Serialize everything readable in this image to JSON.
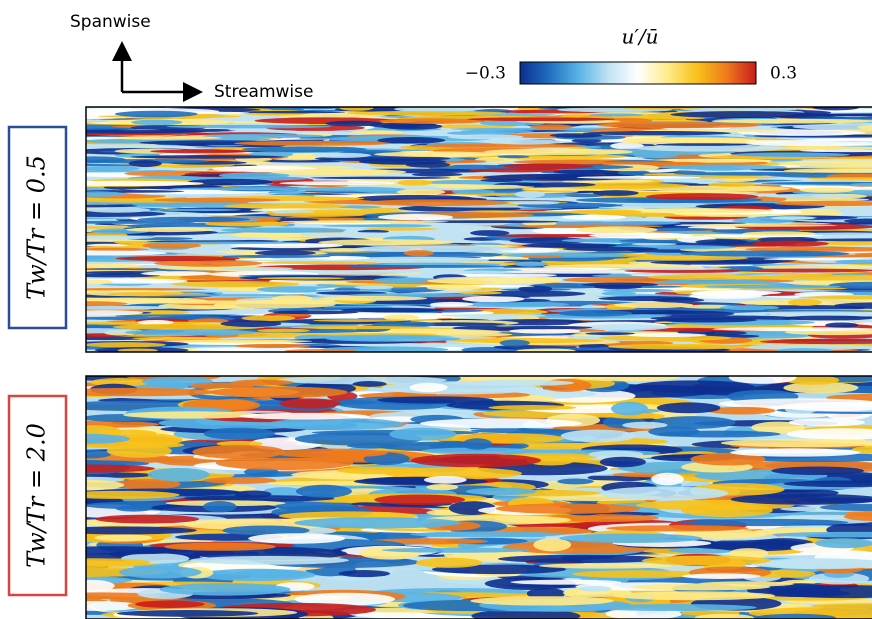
{
  "figure": {
    "axes": {
      "spanwise": "Spanwise",
      "streamwise": "Streamwise"
    },
    "colorbar": {
      "label": "u′/ū",
      "lim": [
        -0.3,
        0.3
      ],
      "ticks": [
        {
          "value": -0.3,
          "label": "−0.3"
        },
        0.3
      ],
      "colors": [
        "#0d2f8f",
        "#1f6fc0",
        "#59b4e6",
        "#bfe3f3",
        "#ffffff",
        "#ffeb8a",
        "#f7c21a",
        "#ef7a1c",
        "#c81d1d"
      ]
    },
    "panels": [
      {
        "label": "Tw/Tr = 0.5",
        "color": "#2b4c9b"
      },
      {
        "label": "Tw/Tr = 2.0",
        "color": "#d8453a"
      }
    ]
  }
}
